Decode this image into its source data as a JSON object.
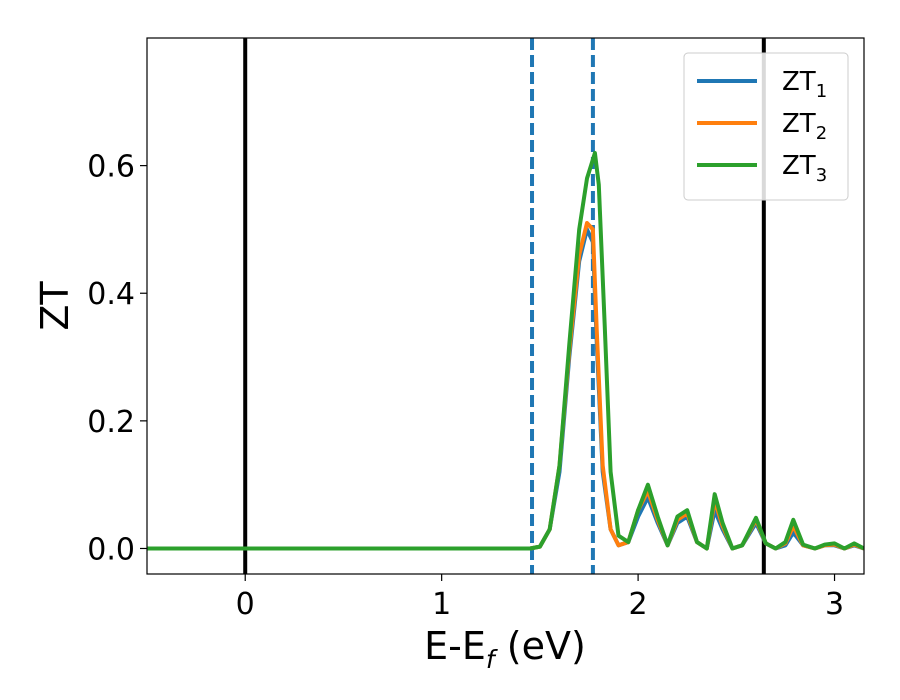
{
  "chart_data": {
    "type": "line",
    "xlabel": "E-E",
    "xlabel_sub": "f",
    "xlabel_unit": " (eV)",
    "ylabel": "ZT",
    "xlim": [
      -0.5,
      3.15
    ],
    "ylim": [
      -0.04,
      0.8
    ],
    "xticks": [
      0,
      1,
      2,
      3
    ],
    "xtick_labels": [
      "0",
      "1",
      "2",
      "3"
    ],
    "yticks": [
      0.0,
      0.2,
      0.4,
      0.6
    ],
    "ytick_labels": [
      "0.0",
      "0.2",
      "0.4",
      "0.6"
    ],
    "grid": false,
    "legend_position": "top-right",
    "vertical_lines": [
      {
        "x": 0.0,
        "style": "solid",
        "color": "#000000"
      },
      {
        "x": 2.64,
        "style": "solid",
        "color": "#000000"
      },
      {
        "x": 1.46,
        "style": "dashed",
        "color": "#1f77b4"
      },
      {
        "x": 1.77,
        "style": "dashed",
        "color": "#1f77b4"
      }
    ],
    "series": [
      {
        "name": "ZT",
        "name_sub": "1",
        "color": "#1f77b4",
        "x": [
          -0.5,
          1.45,
          1.5,
          1.55,
          1.6,
          1.65,
          1.7,
          1.74,
          1.77,
          1.79,
          1.82,
          1.86,
          1.9,
          1.95,
          2.0,
          2.05,
          2.1,
          2.15,
          2.2,
          2.25,
          2.3,
          2.35,
          2.39,
          2.43,
          2.48,
          2.53,
          2.6,
          2.65,
          2.7,
          2.75,
          2.79,
          2.84,
          2.9,
          2.95,
          3.0,
          3.05,
          3.1,
          3.15
        ],
        "y": [
          0.0,
          0.0,
          0.003,
          0.03,
          0.12,
          0.3,
          0.45,
          0.5,
          0.48,
          0.32,
          0.12,
          0.03,
          0.005,
          0.01,
          0.05,
          0.08,
          0.04,
          0.005,
          0.04,
          0.05,
          0.01,
          0.0,
          0.06,
          0.03,
          0.0,
          0.005,
          0.04,
          0.008,
          0.0,
          0.005,
          0.025,
          0.005,
          0.0,
          0.005,
          0.005,
          0.0,
          0.005,
          0.0
        ]
      },
      {
        "name": "ZT",
        "name_sub": "2",
        "color": "#ff7f0e",
        "x": [
          -0.5,
          1.45,
          1.5,
          1.55,
          1.6,
          1.65,
          1.7,
          1.74,
          1.77,
          1.79,
          1.82,
          1.86,
          1.9,
          1.95,
          2.0,
          2.05,
          2.1,
          2.15,
          2.2,
          2.25,
          2.3,
          2.35,
          2.39,
          2.43,
          2.48,
          2.53,
          2.6,
          2.65,
          2.7,
          2.75,
          2.79,
          2.84,
          2.9,
          2.95,
          3.0,
          3.05,
          3.1,
          3.15
        ],
        "y": [
          0.0,
          0.0,
          0.003,
          0.03,
          0.13,
          0.31,
          0.46,
          0.51,
          0.5,
          0.34,
          0.13,
          0.03,
          0.005,
          0.01,
          0.06,
          0.09,
          0.045,
          0.005,
          0.045,
          0.055,
          0.01,
          0.0,
          0.075,
          0.035,
          0.0,
          0.005,
          0.045,
          0.008,
          0.0,
          0.008,
          0.035,
          0.005,
          0.0,
          0.005,
          0.006,
          0.0,
          0.006,
          0.0
        ]
      },
      {
        "name": "ZT",
        "name_sub": "3",
        "color": "#2ca02c",
        "x": [
          -0.5,
          1.45,
          1.5,
          1.55,
          1.6,
          1.65,
          1.7,
          1.74,
          1.76,
          1.78,
          1.8,
          1.83,
          1.86,
          1.9,
          1.95,
          2.0,
          2.05,
          2.1,
          2.15,
          2.2,
          2.25,
          2.3,
          2.35,
          2.39,
          2.43,
          2.48,
          2.53,
          2.6,
          2.65,
          2.7,
          2.75,
          2.79,
          2.84,
          2.9,
          2.95,
          3.0,
          3.05,
          3.1,
          3.15
        ],
        "y": [
          0.0,
          0.0,
          0.003,
          0.03,
          0.13,
          0.32,
          0.5,
          0.58,
          0.6,
          0.62,
          0.57,
          0.35,
          0.12,
          0.02,
          0.01,
          0.06,
          0.1,
          0.05,
          0.005,
          0.05,
          0.06,
          0.01,
          0.0,
          0.085,
          0.04,
          0.0,
          0.005,
          0.048,
          0.008,
          0.0,
          0.01,
          0.045,
          0.006,
          0.0,
          0.006,
          0.008,
          0.0,
          0.008,
          0.0
        ]
      }
    ]
  }
}
